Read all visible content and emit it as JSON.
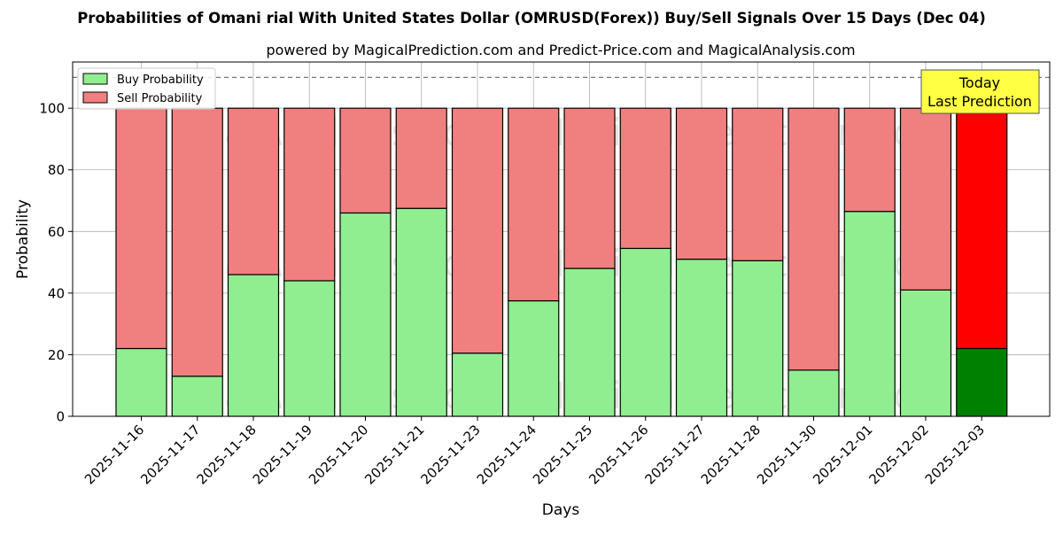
{
  "chart_data": {
    "type": "bar",
    "stacked": true,
    "title": "Probabilities of Omani rial With United States Dollar (OMRUSD(Forex)) Buy/Sell Signals Over 15 Days (Dec 04)",
    "subtitle": "powered by MagicalPrediction.com and Predict-Price.com and MagicalAnalysis.com",
    "xlabel": "Days",
    "ylabel": "Probability",
    "ylim": [
      0,
      115
    ],
    "yticks": [
      0,
      20,
      40,
      60,
      80,
      100
    ],
    "reference_line": 110,
    "grid": true,
    "legend_position": "top-left",
    "categories": [
      "2025-11-16",
      "2025-11-17",
      "2025-11-18",
      "2025-11-19",
      "2025-11-20",
      "2025-11-21",
      "2025-11-23",
      "2025-11-24",
      "2025-11-25",
      "2025-11-26",
      "2025-11-27",
      "2025-11-28",
      "2025-11-30",
      "2025-12-01",
      "2025-12-02",
      "2025-12-03"
    ],
    "series": [
      {
        "name": "Buy Probability",
        "color": "#90ee90",
        "highlight_color": "#008000",
        "values": [
          22,
          13,
          46,
          44,
          66,
          67.5,
          20.5,
          37.5,
          48,
          54.5,
          51,
          50.5,
          15,
          66.5,
          41,
          22
        ]
      },
      {
        "name": "Sell Probability",
        "color": "#f08080",
        "highlight_color": "#ff0000",
        "values": [
          78,
          87,
          54,
          56,
          34,
          32.5,
          79.5,
          62.5,
          52,
          45.5,
          49,
          49.5,
          85,
          33.5,
          59,
          78
        ]
      }
    ],
    "highlight_index": 15,
    "annotation": {
      "text_line1": "Today",
      "text_line2": "Last Prediction",
      "background": "#ffff44"
    },
    "watermarks": [
      "MagicalAnalysis.com",
      "MagicalPrediction.com"
    ]
  }
}
